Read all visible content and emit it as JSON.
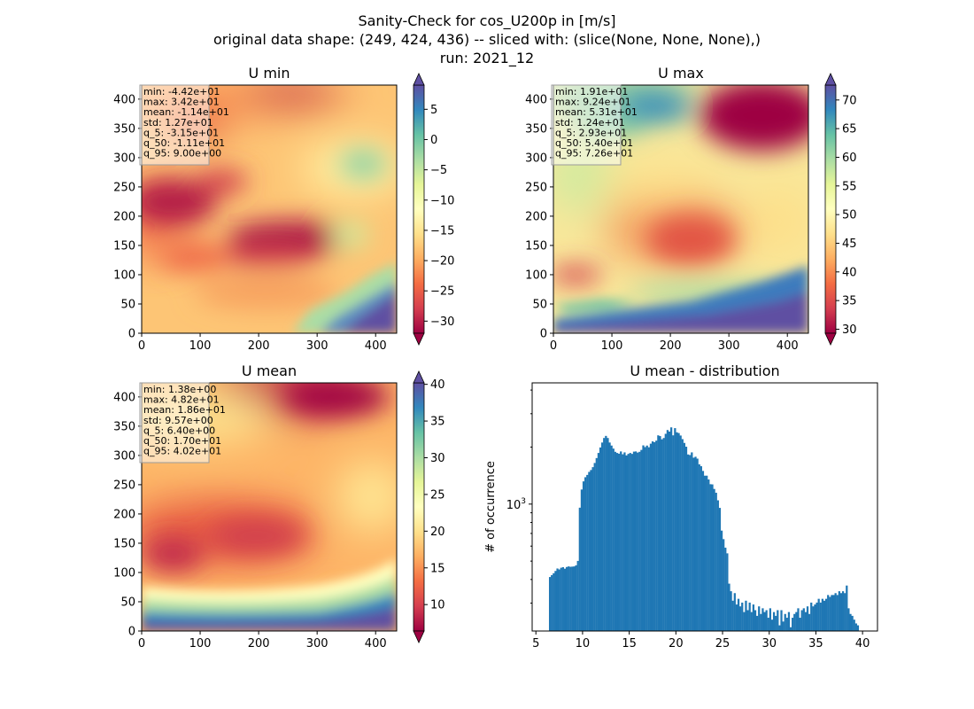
{
  "figure": {
    "title_lines": [
      "Sanity-Check for cos_U200p in [m/s]",
      "original data shape: (249, 424, 436) -- sliced with: (slice(None, None, None),)",
      "run: 2021_12"
    ]
  },
  "chart_data": [
    {
      "type": "heatmap",
      "id": "umin",
      "title": "U min",
      "colormap": "Spectral",
      "xlim": [
        0,
        436
      ],
      "ylim": [
        0,
        424
      ],
      "xticks": [
        0,
        100,
        200,
        300,
        400
      ],
      "yticks": [
        0,
        50,
        100,
        150,
        200,
        250,
        300,
        350,
        400
      ],
      "colorbar": {
        "vmin": -32,
        "vmax": 9,
        "ticks": [
          5,
          0,
          -5,
          -10,
          -15,
          -20,
          -25,
          -30
        ],
        "tick_labels": [
          "5",
          "0",
          "−5",
          "−10",
          "−15",
          "−20",
          "−25",
          "−30"
        ],
        "extend": "both"
      },
      "stats": [
        "min: -4.42e+01",
        "max: 3.42e+01",
        "mean: -1.14e+01",
        "std: 1.27e+01",
        "q_5: -3.15e+01",
        "q_50: -1.11e+01",
        "q_95: 9.00e+00"
      ]
    },
    {
      "type": "heatmap",
      "id": "umax",
      "title": "U max",
      "colormap": "Spectral",
      "xlim": [
        0,
        436
      ],
      "ylim": [
        0,
        424
      ],
      "xticks": [
        0,
        100,
        200,
        300,
        400
      ],
      "yticks": [
        0,
        50,
        100,
        150,
        200,
        250,
        300,
        350,
        400
      ],
      "colorbar": {
        "vmin": 29.3,
        "vmax": 72.6,
        "ticks": [
          70,
          65,
          60,
          55,
          50,
          45,
          40,
          35,
          30
        ],
        "tick_labels": [
          "70",
          "65",
          "60",
          "55",
          "50",
          "45",
          "40",
          "35",
          "30"
        ],
        "extend": "both"
      },
      "stats": [
        "min: 1.91e+01",
        "max: 9.24e+01",
        "mean: 5.31e+01",
        "std: 1.24e+01",
        "q_5: 2.93e+01",
        "q_50: 5.40e+01",
        "q_95: 7.26e+01"
      ]
    },
    {
      "type": "heatmap",
      "id": "umean",
      "title": "U mean",
      "colormap": "Spectral",
      "xlim": [
        0,
        436
      ],
      "ylim": [
        0,
        424
      ],
      "xticks": [
        0,
        100,
        200,
        300,
        400
      ],
      "yticks": [
        0,
        50,
        100,
        150,
        200,
        250,
        300,
        350,
        400
      ],
      "colorbar": {
        "vmin": 6.4,
        "vmax": 40.2,
        "ticks": [
          40,
          35,
          30,
          25,
          20,
          15,
          10
        ],
        "tick_labels": [
          "40",
          "35",
          "30",
          "25",
          "20",
          "15",
          "10"
        ],
        "extend": "both"
      },
      "stats": [
        "min: 1.38e+00",
        "max: 4.82e+01",
        "mean: 1.86e+01",
        "std: 9.57e+00",
        "q_5: 6.40e+00",
        "q_50: 1.70e+01",
        "q_95: 4.02e+01"
      ]
    },
    {
      "type": "bar",
      "id": "hist",
      "title": "U mean - distribution",
      "ylabel": "# of occurrence",
      "yscale": "log",
      "color": "#1f77b4",
      "xlim": [
        4.6,
        41.6
      ],
      "ylim_log10": [
        2.33,
        3.64
      ],
      "xticks": [
        5,
        10,
        15,
        20,
        25,
        30,
        35,
        40
      ],
      "ytick_major": {
        "value": 1000,
        "label": "10^3"
      },
      "bin_start": 6.4,
      "bin_width": 0.2,
      "log10_counts": [
        2.615,
        2.625,
        2.635,
        2.647,
        2.66,
        2.655,
        2.664,
        2.667,
        2.659,
        2.668,
        2.671,
        2.669,
        2.67,
        2.671,
        2.677,
        2.7,
        2.981,
        3.077,
        3.12,
        3.142,
        3.154,
        3.17,
        3.18,
        3.195,
        3.217,
        3.243,
        3.27,
        3.299,
        3.325,
        3.349,
        3.36,
        3.349,
        3.325,
        3.309,
        3.293,
        3.276,
        3.27,
        3.266,
        3.278,
        3.263,
        3.273,
        3.257,
        3.265,
        3.27,
        3.265,
        3.277,
        3.278,
        3.272,
        3.276,
        3.286,
        3.31,
        3.301,
        3.309,
        3.3,
        3.319,
        3.331,
        3.327,
        3.335,
        3.363,
        3.359,
        3.342,
        3.349,
        3.371,
        3.391,
        3.383,
        3.405,
        3.363,
        3.401,
        3.379,
        3.375,
        3.362,
        3.343,
        3.323,
        3.303,
        3.262,
        3.259,
        3.273,
        3.245,
        3.25,
        3.24,
        3.21,
        3.2,
        3.175,
        3.15,
        3.15,
        3.13,
        3.105,
        3.104,
        3.08,
        3.06,
        3.02,
        2.98,
        2.86,
        2.815,
        2.77,
        2.74,
        2.58,
        2.54,
        2.49,
        2.53,
        2.47,
        2.5,
        2.46,
        2.48,
        2.43,
        2.49,
        2.44,
        2.48,
        2.43,
        2.47,
        2.44,
        2.41,
        2.46,
        2.42,
        2.45,
        2.43,
        2.44,
        2.4,
        2.45,
        2.39,
        2.43,
        2.41,
        2.44,
        2.36,
        2.44,
        2.38,
        2.42,
        2.4,
        2.43,
        2.35,
        2.4,
        2.42,
        2.43,
        2.45,
        2.4,
        2.44,
        2.45,
        2.43,
        2.46,
        2.42,
        2.48,
        2.46,
        2.47,
        2.48,
        2.5,
        2.48,
        2.5,
        2.49,
        2.5,
        2.52,
        2.51,
        2.52,
        2.52,
        2.53,
        2.52,
        2.54,
        2.53,
        2.54,
        2.53,
        2.57,
        2.45,
        2.42,
        2.41,
        2.39,
        2.37,
        2.36,
        2.33
      ]
    }
  ]
}
